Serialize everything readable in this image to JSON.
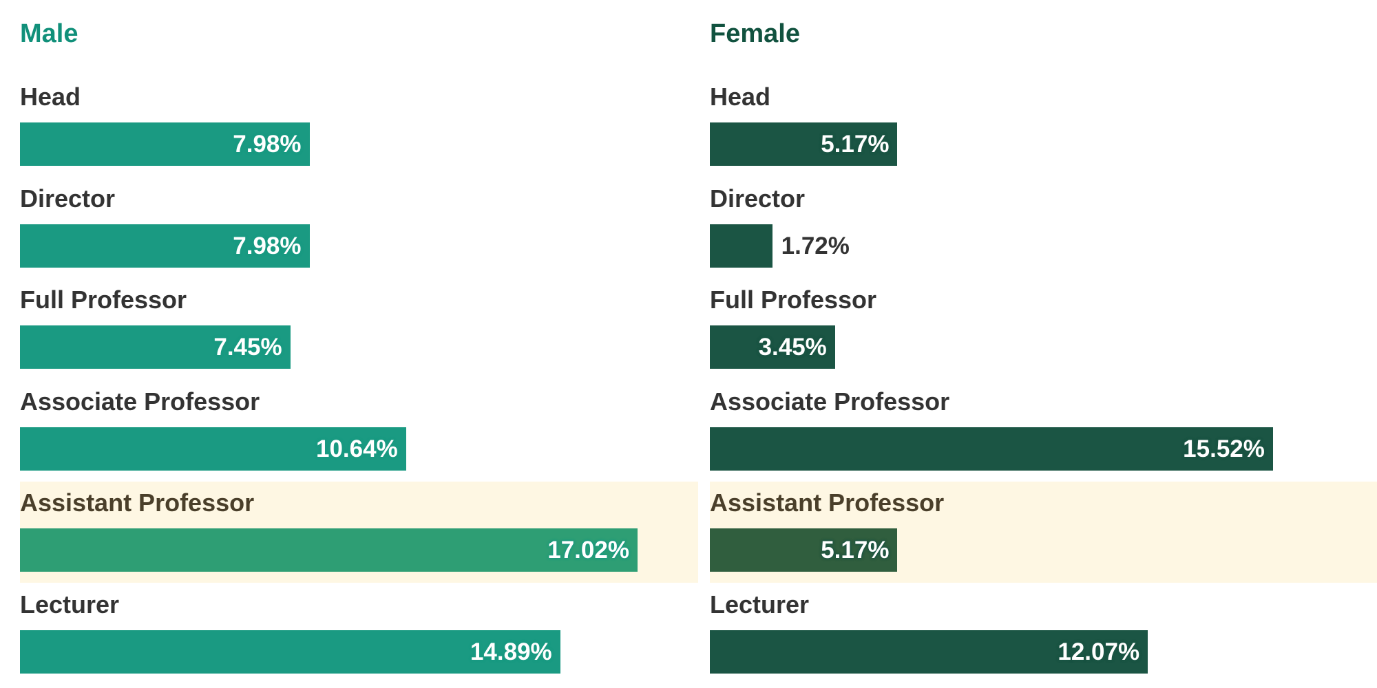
{
  "colors": {
    "male": "#1a9a82",
    "male_highlight": "#2e9e74",
    "male_title": "#11907a",
    "female": "#1b5544",
    "female_highlight": "#305e3e",
    "female_title": "#11523f",
    "highlight_band": "#fef7e3"
  },
  "chart_data": [
    {
      "type": "bar",
      "orientation": "horizontal",
      "title": "Male",
      "categories": [
        "Head",
        "Director",
        "Full Professor",
        "Associate Professor",
        "Assistant Professor",
        "Lecturer"
      ],
      "values": [
        7.98,
        7.98,
        7.45,
        10.64,
        17.02,
        14.89
      ],
      "labels": [
        "7.98%",
        "7.98%",
        "7.45%",
        "10.64%",
        "17.02%",
        "14.89%"
      ],
      "highlight": "Assistant Professor",
      "xlim": [
        0,
        18
      ]
    },
    {
      "type": "bar",
      "orientation": "horizontal",
      "title": "Female",
      "categories": [
        "Head",
        "Director",
        "Full Professor",
        "Associate Professor",
        "Assistant Professor",
        "Lecturer"
      ],
      "values": [
        5.17,
        1.72,
        3.45,
        15.52,
        5.17,
        12.07
      ],
      "labels": [
        "5.17%",
        "1.72%",
        "3.45%",
        "15.52%",
        "5.17%",
        "12.07%"
      ],
      "highlight": "Assistant Professor",
      "xlim": [
        0,
        18
      ]
    }
  ]
}
